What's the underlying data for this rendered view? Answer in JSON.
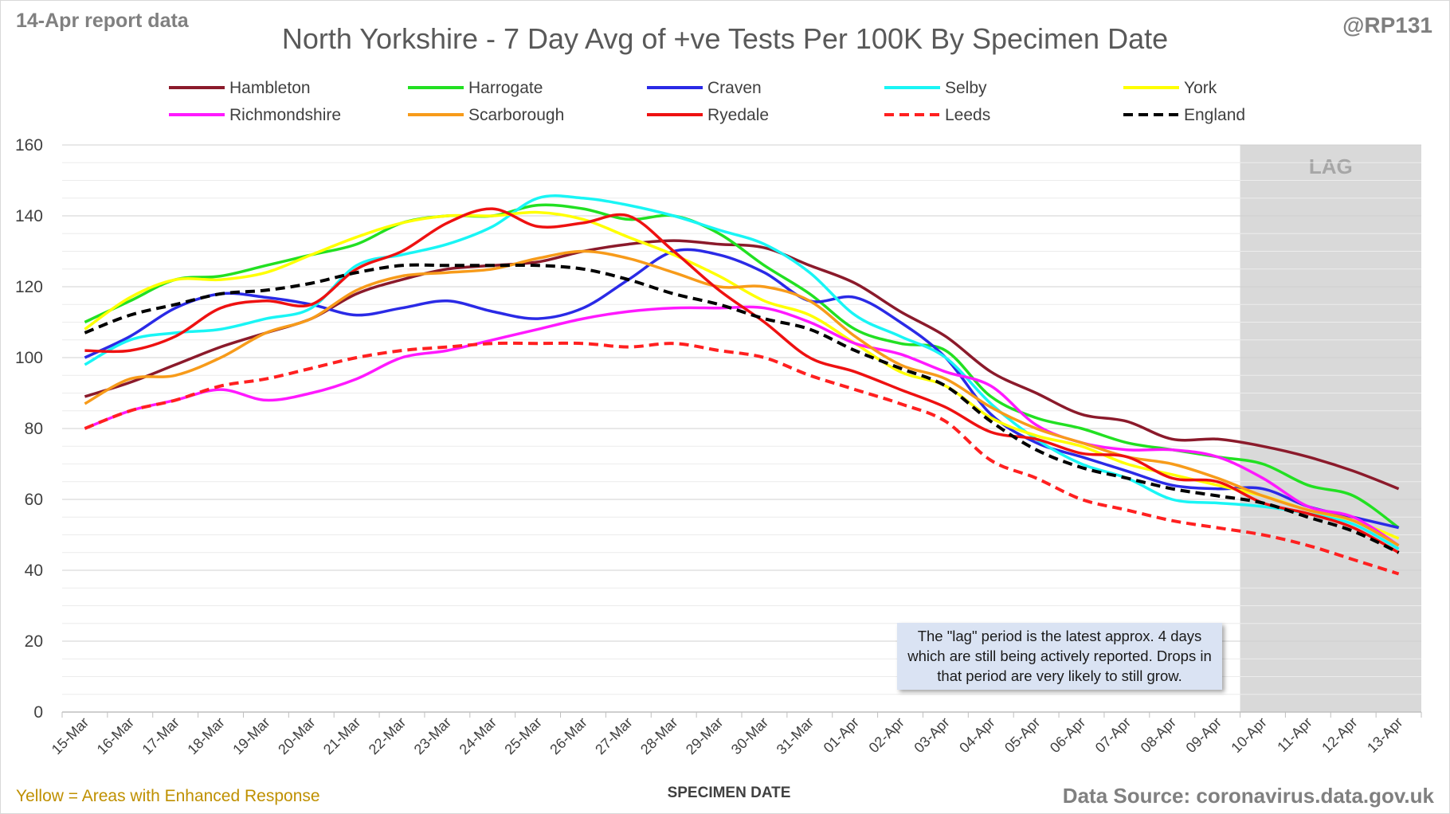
{
  "header": {
    "report_label": "14-Apr report data",
    "handle": "@RP131",
    "title": "North Yorkshire - 7 Day Avg of +ve Tests Per 100K By Specimen Date"
  },
  "footer": {
    "enhanced_note": "Yellow = Areas with Enhanced Response",
    "source": "Data Source: coronavirus.data.gov.uk"
  },
  "lag_note": "The \"lag\" period is the latest approx. 4 days which are still being actively reported. Drops in that period are very likely to still grow.",
  "chart_data": {
    "type": "line",
    "title": "North Yorkshire - 7 Day Avg of +ve Tests Per 100K By Specimen Date",
    "xlabel": "SPECIMEN DATE",
    "ylabel": "",
    "ylim": [
      0,
      160
    ],
    "yticks": [
      0,
      20,
      40,
      60,
      80,
      100,
      120,
      140,
      160
    ],
    "grid": true,
    "legend_position": "top",
    "shaded_region": {
      "label": "LAG",
      "from": "10-Apr",
      "to": "13-Apr",
      "color": "#d9d9d9"
    },
    "categories": [
      "15-Mar",
      "16-Mar",
      "17-Mar",
      "18-Mar",
      "19-Mar",
      "20-Mar",
      "21-Mar",
      "22-Mar",
      "23-Mar",
      "24-Mar",
      "25-Mar",
      "26-Mar",
      "27-Mar",
      "28-Mar",
      "29-Mar",
      "30-Mar",
      "31-Mar",
      "01-Apr",
      "02-Apr",
      "03-Apr",
      "04-Apr",
      "05-Apr",
      "06-Apr",
      "07-Apr",
      "08-Apr",
      "09-Apr",
      "10-Apr",
      "11-Apr",
      "12-Apr",
      "13-Apr"
    ],
    "series": [
      {
        "name": "Hambleton",
        "color": "#8b1a2b",
        "dash": false,
        "values": [
          89,
          93,
          98,
          103,
          107,
          111,
          118,
          122,
          125,
          126,
          127,
          130,
          132,
          133,
          132,
          131,
          126,
          121,
          113,
          106,
          96,
          90,
          84,
          82,
          77,
          77,
          75,
          72,
          68,
          63
        ]
      },
      {
        "name": "Harrogate",
        "color": "#22e022",
        "dash": false,
        "values": [
          110,
          116,
          122,
          123,
          126,
          129,
          132,
          138,
          140,
          140,
          143,
          142,
          139,
          140,
          135,
          126,
          118,
          108,
          104,
          102,
          89,
          83,
          80,
          76,
          74,
          72,
          70,
          64,
          61,
          52
        ]
      },
      {
        "name": "Craven",
        "color": "#2a2ae6",
        "dash": false,
        "values": [
          100,
          106,
          114,
          118,
          117,
          115,
          112,
          114,
          116,
          113,
          111,
          114,
          122,
          130,
          129,
          124,
          116,
          117,
          110,
          100,
          84,
          76,
          72,
          68,
          64,
          63,
          63,
          58,
          55,
          52
        ]
      },
      {
        "name": "Selby",
        "color": "#19f5f5",
        "dash": false,
        "values": [
          98,
          105,
          107,
          108,
          111,
          114,
          126,
          129,
          132,
          137,
          145,
          145,
          143,
          140,
          136,
          132,
          124,
          112,
          106,
          100,
          87,
          77,
          70,
          66,
          60,
          59,
          58,
          56,
          53,
          46
        ]
      },
      {
        "name": "York",
        "color": "#ffff00",
        "dash": false,
        "values": [
          108,
          117,
          122,
          122,
          124,
          129,
          134,
          138,
          140,
          140,
          141,
          139,
          134,
          129,
          123,
          116,
          112,
          104,
          96,
          92,
          83,
          78,
          75,
          70,
          67,
          64,
          61,
          57,
          54,
          49
        ]
      },
      {
        "name": "Richmondshire",
        "color": "#ff19ff",
        "dash": false,
        "values": [
          80,
          85,
          88,
          91,
          88,
          90,
          94,
          100,
          102,
          105,
          108,
          111,
          113,
          114,
          114,
          114,
          110,
          104,
          101,
          96,
          92,
          81,
          76,
          74,
          74,
          72,
          66,
          58,
          55,
          47
        ]
      },
      {
        "name": "Scarborough",
        "color": "#f79b1a",
        "dash": false,
        "values": [
          87,
          94,
          95,
          100,
          107,
          111,
          119,
          123,
          124,
          125,
          128,
          130,
          128,
          124,
          120,
          120,
          116,
          106,
          98,
          94,
          86,
          80,
          76,
          72,
          70,
          66,
          61,
          57,
          54,
          47
        ]
      },
      {
        "name": "Ryedale",
        "color": "#ee1111",
        "dash": false,
        "values": [
          102,
          102,
          106,
          114,
          116,
          115,
          125,
          130,
          138,
          142,
          137,
          138,
          140,
          130,
          119,
          110,
          100,
          96,
          91,
          86,
          79,
          77,
          73,
          72,
          66,
          65,
          59,
          56,
          52,
          45
        ]
      },
      {
        "name": "Leeds",
        "color": "#ff2020",
        "dash": true,
        "values": [
          80,
          85,
          88,
          92,
          94,
          97,
          100,
          102,
          103,
          104,
          104,
          104,
          103,
          104,
          102,
          100,
          95,
          91,
          87,
          82,
          71,
          66,
          60,
          57,
          54,
          52,
          50,
          47,
          43,
          39
        ]
      },
      {
        "name": "England",
        "color": "#000000",
        "dash": true,
        "values": [
          107,
          112,
          115,
          118,
          119,
          121,
          124,
          126,
          126,
          126,
          126,
          125,
          122,
          118,
          115,
          111,
          108,
          102,
          97,
          92,
          82,
          74,
          69,
          66,
          63,
          61,
          59,
          55,
          51,
          45
        ]
      }
    ]
  }
}
